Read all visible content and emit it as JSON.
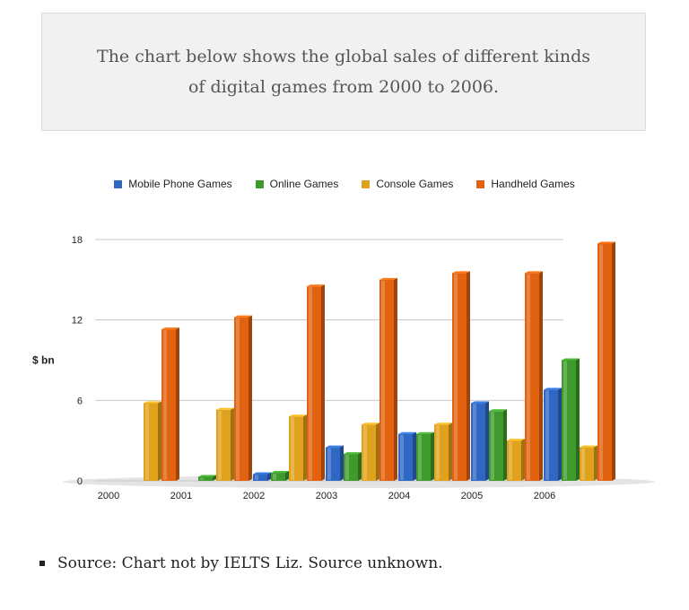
{
  "caption": {
    "text": "The chart below shows the global sales of different kinds of digital games from 2000 to 2006."
  },
  "source": {
    "text": "Source: Chart not by IELTS Liz. Source unknown."
  },
  "colors": {
    "mobile": "#2f67c4",
    "online": "#3f9a2c",
    "console": "#e0a21c",
    "handheld": "#e2620f"
  },
  "chart_data": {
    "type": "bar",
    "title": "",
    "xlabel": "",
    "ylabel": "$ bn",
    "ylim": [
      0,
      18
    ],
    "yticks": [
      0,
      6,
      12,
      18
    ],
    "grid": true,
    "legend_position": "top",
    "categories": [
      "2000",
      "2001",
      "2002",
      "2003",
      "2004",
      "2005",
      "2006"
    ],
    "series": [
      {
        "name": "Mobile Phone Games",
        "key": "mobile",
        "values": [
          0,
          0,
          0.5,
          2.5,
          3.5,
          5.8,
          6.8
        ]
      },
      {
        "name": "Online Games",
        "key": "online",
        "values": [
          0,
          0.3,
          0.6,
          2.0,
          3.5,
          5.2,
          9.0
        ]
      },
      {
        "name": "Console Games",
        "key": "console",
        "values": [
          5.8,
          5.3,
          4.8,
          4.2,
          4.2,
          3.0,
          2.5
        ]
      },
      {
        "name": "Handheld Games",
        "key": "handheld",
        "values": [
          11.3,
          12.2,
          14.5,
          15.0,
          15.5,
          15.5,
          17.7
        ]
      }
    ]
  }
}
